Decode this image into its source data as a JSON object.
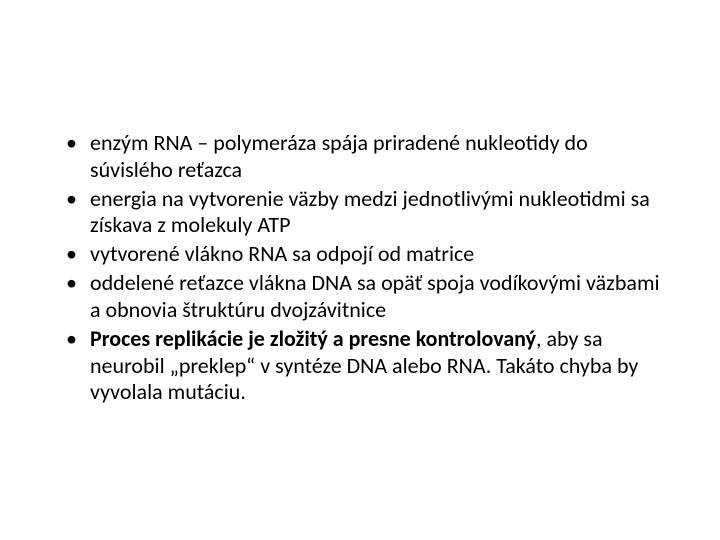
{
  "slide": {
    "background_color": "#ffffff",
    "text_color": "#000000",
    "font_family": "Calibri",
    "font_size_pt": 22,
    "line_height": 1.22,
    "bullets": [
      {
        "runs": [
          {
            "text": "enzým RNA – polymeráza spája priradené nukleotidy do súvislého reťazca",
            "bold": false
          }
        ]
      },
      {
        "runs": [
          {
            "text": "energia na vytvorenie väzby medzi jednotlivými nukleotidmi sa získava z molekuly ATP",
            "bold": false
          }
        ]
      },
      {
        "runs": [
          {
            "text": "vytvorené vlákno RNA sa odpojí od matrice",
            "bold": false
          }
        ]
      },
      {
        "runs": [
          {
            "text": "oddelené reťazce vlákna DNA sa opäť spoja vodíkovými väzbami a obnovia štruktúru dvojzávitnice",
            "bold": false
          }
        ]
      },
      {
        "runs": [
          {
            "text": "Proces replikácie je zložitý a presne kontrolovaný",
            "bold": true
          },
          {
            "text": ", aby sa neurobil „preklep“ v syntéze DNA alebo RNA. Takáto chyba by vyvolala mutáciu.",
            "bold": false
          }
        ]
      }
    ]
  }
}
